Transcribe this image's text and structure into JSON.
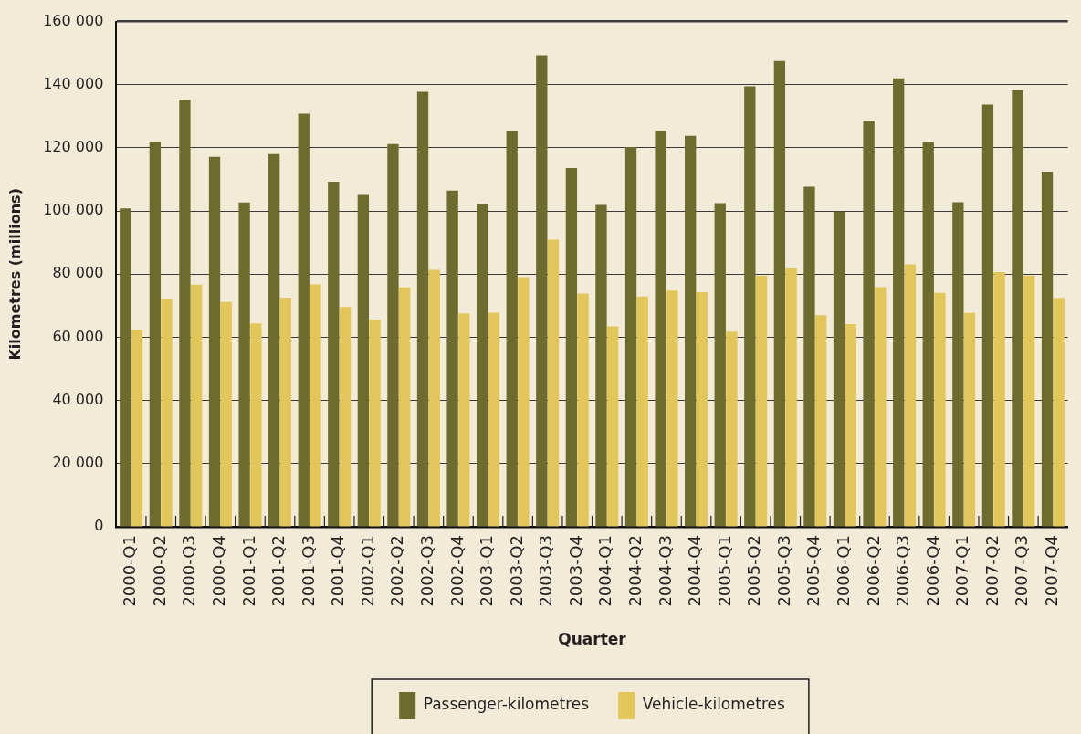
{
  "chart_data": {
    "type": "bar",
    "xlabel": "Quarter",
    "ylabel": "Kilometres (millions)",
    "categories": [
      "2000-Q1",
      "2000-Q2",
      "2000-Q3",
      "2000-Q4",
      "2001-Q1",
      "2001-Q2",
      "2001-Q3",
      "2001-Q4",
      "2002-Q1",
      "2002-Q2",
      "2002-Q3",
      "2002-Q4",
      "2003-Q1",
      "2003-Q2",
      "2003-Q3",
      "2003-Q4",
      "2004-Q1",
      "2004-Q2",
      "2004-Q3",
      "2004-Q4",
      "2005-Q1",
      "2005-Q2",
      "2005-Q3",
      "2005-Q4",
      "2006-Q1",
      "2006-Q2",
      "2006-Q3",
      "2006-Q4",
      "2007-Q1",
      "2007-Q2",
      "2007-Q3",
      "2007-Q4"
    ],
    "series": [
      {
        "name": "Passenger-kilometres",
        "color": "#6e6b2f",
        "values": [
          100800,
          122000,
          135300,
          117200,
          102700,
          118000,
          130800,
          109300,
          105100,
          121200,
          137800,
          106500,
          102100,
          125200,
          149300,
          113600,
          101900,
          120300,
          125400,
          123800,
          102500,
          139500,
          147500,
          107700,
          99800,
          128600,
          142000,
          121900,
          102800,
          133700,
          138200,
          112500
        ]
      },
      {
        "name": "Vehicle-kilometres",
        "color": "#e3c65a",
        "values": [
          62400,
          72000,
          76700,
          71200,
          64400,
          72600,
          76800,
          69600,
          65600,
          75800,
          81400,
          67600,
          67800,
          79100,
          90900,
          73900,
          63500,
          72900,
          74800,
          74300,
          61800,
          79500,
          81800,
          67000,
          64200,
          75900,
          83100,
          74100,
          67700,
          80700,
          79600,
          72500
        ]
      }
    ],
    "ylim": [
      0,
      160000
    ],
    "yticks": [
      0,
      {
        "value": 20000,
        "label": "20 000"
      },
      {
        "value": 40000,
        "label": "40 000"
      },
      {
        "value": 60000,
        "label": "60 000"
      },
      {
        "value": 80000,
        "label": "80 000"
      },
      {
        "value": 100000,
        "label": "100 000"
      },
      {
        "value": 120000,
        "label": "120 000"
      },
      {
        "value": 140000,
        "label": "140 000"
      },
      {
        "value": 160000,
        "label": "160 000"
      }
    ],
    "grid": "y",
    "legend": "bottom"
  }
}
